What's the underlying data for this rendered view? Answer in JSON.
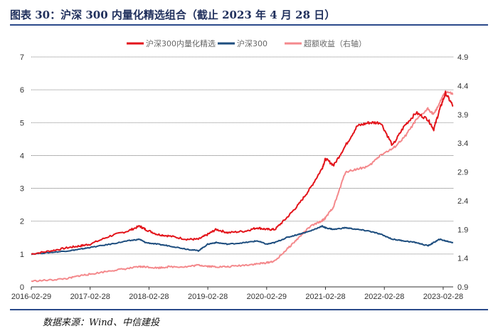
{
  "header": {
    "title": "图表 30：沪深 300 内量化精选组合（截止 2023 年 4 月 28 日）"
  },
  "footer": {
    "source": "数据来源：Wind、中信建投"
  },
  "chart_data": {
    "type": "line",
    "title": "图表 30：沪深 300 内量化精选组合（截止 2023 年 4 月 28 日）",
    "xlabel": "",
    "ylabel": "",
    "y_left_lim": [
      0,
      7
    ],
    "y_left_ticks": [
      "0",
      "1",
      "2",
      "3",
      "4",
      "5",
      "6",
      "7"
    ],
    "y_right_lim": [
      0.9,
      4.9
    ],
    "y_right_ticks": [
      "0.9",
      "1.4",
      "1.9",
      "2.4",
      "2.9",
      "3.4",
      "3.9",
      "4.4",
      "4.9"
    ],
    "x_ticks": [
      "2016-02-29",
      "2017-02-28",
      "2018-02-28",
      "2019-02-28",
      "2020-02-29",
      "2021-02-28",
      "2022-02-28",
      "2023-02-28"
    ],
    "grid": "horizontal",
    "legend_position": "top",
    "series": [
      {
        "name": "沪深300内量化精选",
        "axis": "left",
        "color": "#e3141b",
        "x": [
          2016.16,
          2016.5,
          2016.8,
          2017.0,
          2017.16,
          2017.5,
          2017.8,
          2018.0,
          2018.1,
          2018.3,
          2018.5,
          2018.8,
          2019.0,
          2019.16,
          2019.3,
          2019.5,
          2019.8,
          2020.0,
          2020.16,
          2020.3,
          2020.5,
          2020.7,
          2020.9,
          2021.1,
          2021.16,
          2021.3,
          2021.5,
          2021.7,
          2021.9,
          2022.1,
          2022.3,
          2022.5,
          2022.7,
          2022.9,
          2023.0,
          2023.1,
          2023.2,
          2023.33
        ],
        "values": [
          1.0,
          1.1,
          1.2,
          1.25,
          1.3,
          1.55,
          1.7,
          1.85,
          1.75,
          1.6,
          1.55,
          1.45,
          1.45,
          1.6,
          1.75,
          1.65,
          1.7,
          1.8,
          1.75,
          1.75,
          2.1,
          2.5,
          3.0,
          3.6,
          3.9,
          3.7,
          4.3,
          4.9,
          5.0,
          5.0,
          4.3,
          4.9,
          5.3,
          5.1,
          4.8,
          5.4,
          5.9,
          5.5
        ]
      },
      {
        "name": "沪深300",
        "axis": "left",
        "color": "#1d4d7e",
        "x": [
          2016.16,
          2016.5,
          2016.8,
          2017.0,
          2017.16,
          2017.5,
          2017.8,
          2018.0,
          2018.1,
          2018.3,
          2018.5,
          2018.8,
          2019.0,
          2019.16,
          2019.3,
          2019.5,
          2019.8,
          2020.0,
          2020.16,
          2020.3,
          2020.5,
          2020.7,
          2020.9,
          2021.1,
          2021.16,
          2021.3,
          2021.5,
          2021.7,
          2021.9,
          2022.1,
          2022.3,
          2022.5,
          2022.7,
          2022.9,
          2023.0,
          2023.1,
          2023.2,
          2023.33
        ],
        "values": [
          1.0,
          1.05,
          1.1,
          1.15,
          1.2,
          1.3,
          1.4,
          1.45,
          1.35,
          1.3,
          1.25,
          1.15,
          1.1,
          1.3,
          1.35,
          1.3,
          1.35,
          1.4,
          1.3,
          1.35,
          1.5,
          1.6,
          1.7,
          1.85,
          1.8,
          1.75,
          1.8,
          1.75,
          1.7,
          1.6,
          1.45,
          1.4,
          1.35,
          1.25,
          1.35,
          1.45,
          1.4,
          1.35
        ]
      },
      {
        "name": "超额收益（右轴）",
        "axis": "right",
        "color": "#f4898c",
        "x": [
          2016.16,
          2016.5,
          2016.8,
          2017.0,
          2017.16,
          2017.5,
          2017.8,
          2018.0,
          2018.1,
          2018.3,
          2018.5,
          2018.8,
          2019.0,
          2019.16,
          2019.3,
          2019.5,
          2019.8,
          2020.0,
          2020.16,
          2020.3,
          2020.5,
          2020.7,
          2020.9,
          2021.1,
          2021.16,
          2021.3,
          2021.5,
          2021.7,
          2021.9,
          2022.1,
          2022.3,
          2022.5,
          2022.7,
          2022.9,
          2023.0,
          2023.1,
          2023.2,
          2023.33
        ],
        "values": [
          1.0,
          1.02,
          1.05,
          1.1,
          1.12,
          1.18,
          1.22,
          1.25,
          1.25,
          1.23,
          1.25,
          1.25,
          1.28,
          1.26,
          1.25,
          1.25,
          1.28,
          1.3,
          1.32,
          1.35,
          1.55,
          1.75,
          1.95,
          2.05,
          2.1,
          2.3,
          2.9,
          2.95,
          3.0,
          3.2,
          3.3,
          3.5,
          3.8,
          4.0,
          3.9,
          4.1,
          4.3,
          4.25
        ]
      }
    ]
  }
}
